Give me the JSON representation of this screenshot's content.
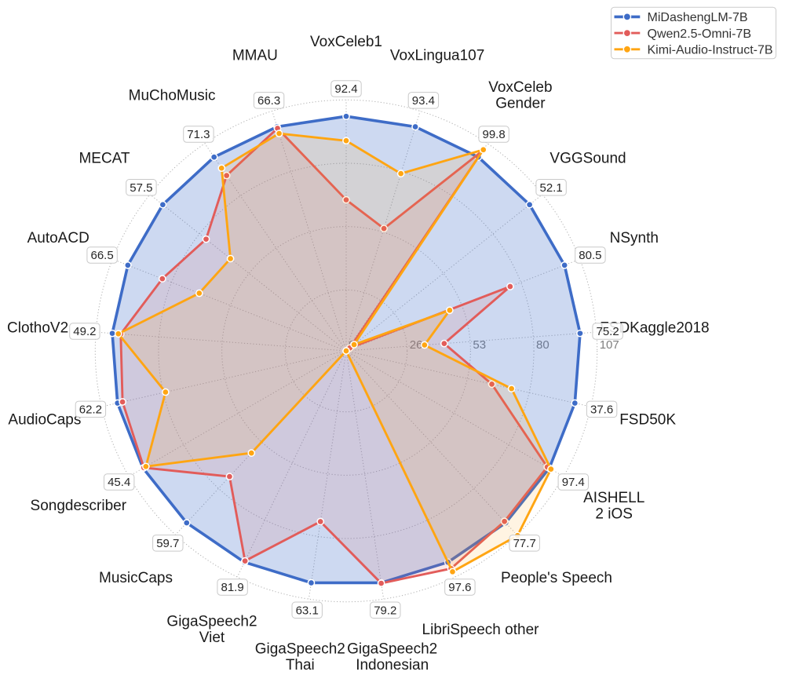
{
  "figure": {
    "background": "#ffffff",
    "title": ""
  },
  "legend": {
    "position": "upper right",
    "items": [
      {
        "label": "MiDashengLM-7B",
        "color": "#3e6cc7"
      },
      {
        "label": "Qwen2.5-Omni-7B",
        "color": "#e25c5a"
      },
      {
        "label": "Kimi-Audio-Instruct-7B",
        "color": "#ffa512"
      }
    ]
  },
  "chart_data": {
    "type": "radar",
    "title": "",
    "axes_count": 21,
    "rmax": 107,
    "rmin": 0,
    "radial_ticks": [
      0,
      26,
      53,
      80,
      107
    ],
    "radial_tick_labels": [
      "0",
      "26",
      "53",
      "80",
      "107"
    ],
    "grid": true,
    "grid_style": "dotted",
    "legend_position": "upper right",
    "note": "Series values are plotted radii normalized to MiDashengLM-7B = 100 on every axis; value_label is the absolute MiDashengLM-7B score shown in the white badge.",
    "categories": [
      {
        "label": "VoxCeleb1",
        "lines": [
          "VoxCeleb1"
        ],
        "value_label": "92.4"
      },
      {
        "label": "VoxLingua107",
        "lines": [
          "VoxLingua107"
        ],
        "value_label": "93.4"
      },
      {
        "label": "VoxCeleb Gender",
        "lines": [
          "VoxCeleb",
          "Gender"
        ],
        "value_label": "99.8"
      },
      {
        "label": "VGGSound",
        "lines": [
          "VGGSound"
        ],
        "value_label": "52.1"
      },
      {
        "label": "NSynth",
        "lines": [
          "NSynth"
        ],
        "value_label": "80.5"
      },
      {
        "label": "FSDKaggle2018",
        "lines": [
          "FSDKaggle2018"
        ],
        "value_label": "75.2"
      },
      {
        "label": "FSD50K",
        "lines": [
          "FSD50K"
        ],
        "value_label": "37.6"
      },
      {
        "label": "AISHELL 2 iOS",
        "lines": [
          "AISHELL",
          "2 iOS"
        ],
        "value_label": "97.4"
      },
      {
        "label": "People's Speech",
        "lines": [
          "People's Speech"
        ],
        "value_label": "77.7"
      },
      {
        "label": "LibriSpeech other",
        "lines": [
          "LibriSpeech other"
        ],
        "value_label": "97.6"
      },
      {
        "label": "GigaSpeech2 Indonesian",
        "lines": [
          "GigaSpeech2",
          "Indonesian"
        ],
        "value_label": "79.2"
      },
      {
        "label": "GigaSpeech2 Thai",
        "lines": [
          "GigaSpeech2",
          "Thai"
        ],
        "value_label": "63.1"
      },
      {
        "label": "GigaSpeech2 Viet",
        "lines": [
          "GigaSpeech2",
          "Viet"
        ],
        "value_label": "81.9"
      },
      {
        "label": "MusicCaps",
        "lines": [
          "MusicCaps"
        ],
        "value_label": "59.7"
      },
      {
        "label": "Songdescriber",
        "lines": [
          "Songdescriber"
        ],
        "value_label": "45.4"
      },
      {
        "label": "AudioCaps",
        "lines": [
          "AudioCaps"
        ],
        "value_label": "62.2"
      },
      {
        "label": "ClothoV2",
        "lines": [
          "ClothoV2"
        ],
        "value_label": "49.2"
      },
      {
        "label": "AutoACD",
        "lines": [
          "AutoACD"
        ],
        "value_label": "66.5"
      },
      {
        "label": "MECAT",
        "lines": [
          "MECAT"
        ],
        "value_label": "57.5"
      },
      {
        "label": "MuChoMusic",
        "lines": [
          "MuChoMusic"
        ],
        "value_label": "71.3"
      },
      {
        "label": "MMAU",
        "lines": [
          "MMAU"
        ],
        "value_label": "66.3"
      }
    ],
    "series": [
      {
        "name": "MiDashengLM-7B",
        "color": "#3e6cc7",
        "fill_opacity": 0.26,
        "line_width": 3.6,
        "values": [
          100,
          100,
          100,
          100,
          100,
          100,
          100,
          100,
          100,
          100,
          100,
          100,
          100,
          100,
          100,
          100,
          100,
          100,
          100,
          100,
          100
        ]
      },
      {
        "name": "Qwen2.5-Omni-7B",
        "color": "#e25c5a",
        "fill_opacity": 0.13,
        "line_width": 2.9,
        "values": [
          64.4,
          54.6,
          103.4,
          2.0,
          75.1,
          41.9,
          63.7,
          99.0,
          99.2,
          103.0,
          100.2,
          73.6,
          99.4,
          73.1,
          99.6,
          97.8,
          96.4,
          84.2,
          76.4,
          90.5,
          99.3
        ]
      },
      {
        "name": "Kimi-Audio-Instruct-7B",
        "color": "#ffa512",
        "fill_opacity": 0.12,
        "line_width": 2.9,
        "values": [
          89.6,
          79.1,
          103.8,
          4.3,
          47.4,
          33.5,
          72.3,
          100.8,
          107.4,
          104.5,
          0,
          0,
          0,
          59.4,
          98.6,
          79.0,
          97.4,
          67.3,
          63.1,
          94.3,
          97.0
        ]
      }
    ]
  }
}
